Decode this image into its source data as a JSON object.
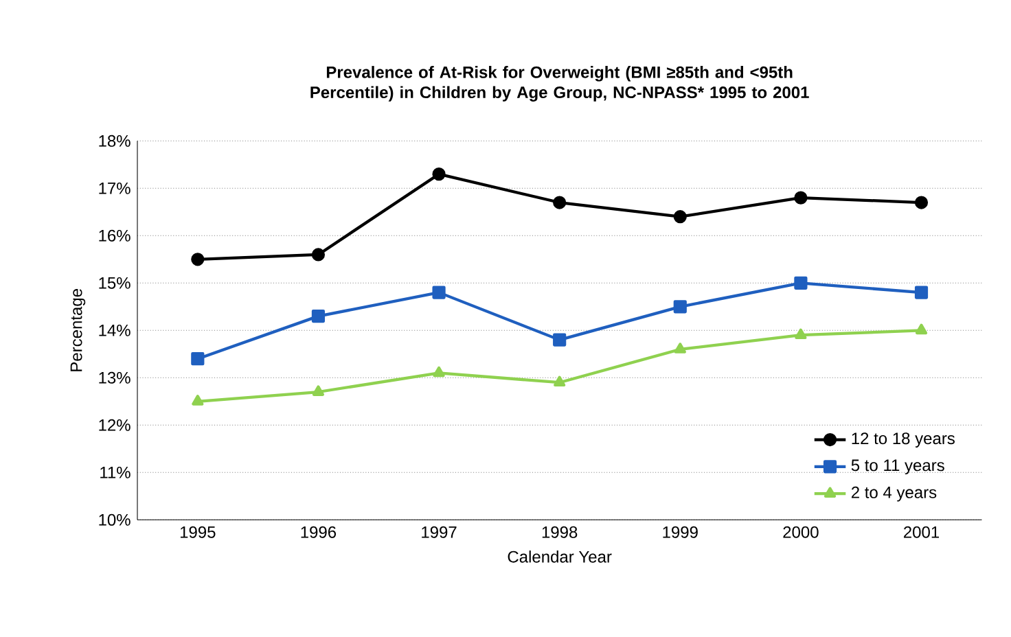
{
  "chart_data": {
    "type": "line",
    "title": "Prevalence of At-Risk for Overweight (BMI ≥85th and <95th Percentile) in Children by Age Group, NC-NPASS* 1995 to 2001",
    "xlabel": "Calendar Year",
    "ylabel": "Percentage",
    "categories": [
      "1995",
      "1996",
      "1997",
      "1998",
      "1999",
      "2000",
      "2001"
    ],
    "series": [
      {
        "name": "12 to 18 years",
        "color": "#000000",
        "marker": "circle",
        "values": [
          15.5,
          15.6,
          17.3,
          16.7,
          16.4,
          16.8,
          16.7
        ]
      },
      {
        "name": "5 to 11 years",
        "color": "#1f5fbf",
        "marker": "square",
        "values": [
          13.4,
          14.3,
          14.8,
          13.8,
          14.5,
          15.0,
          14.8
        ]
      },
      {
        "name": "2 to 4 years",
        "color": "#8fd14f",
        "marker": "triangle",
        "values": [
          12.5,
          12.7,
          13.1,
          12.9,
          13.6,
          13.9,
          14.0
        ]
      }
    ],
    "ylim": [
      10,
      18
    ],
    "yticks": [
      {
        "value": 10,
        "label": "10%"
      },
      {
        "value": 11,
        "label": "11%"
      },
      {
        "value": 12,
        "label": "12%"
      },
      {
        "value": 13,
        "label": "13%"
      },
      {
        "value": 14,
        "label": "14%"
      },
      {
        "value": 15,
        "label": "15%"
      },
      {
        "value": 16,
        "label": "16%"
      },
      {
        "value": 17,
        "label": "17%"
      },
      {
        "value": 18,
        "label": "18%"
      }
    ],
    "grid": "y",
    "legend": "bottom right",
    "line_style": "solid"
  }
}
